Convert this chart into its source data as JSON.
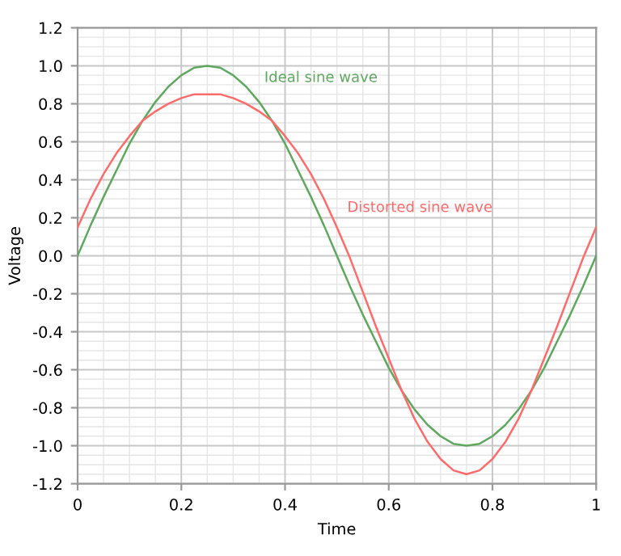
{
  "chart_data": {
    "type": "line",
    "xlabel": "Time",
    "ylabel": "Voltage",
    "x": [
      0,
      0.025,
      0.05,
      0.075,
      0.1,
      0.125,
      0.15,
      0.175,
      0.2,
      0.225,
      0.25,
      0.275,
      0.3,
      0.325,
      0.35,
      0.375,
      0.4,
      0.425,
      0.45,
      0.475,
      0.5,
      0.525,
      0.55,
      0.575,
      0.6,
      0.625,
      0.65,
      0.675,
      0.7,
      0.725,
      0.75,
      0.775,
      0.8,
      0.825,
      0.85,
      0.875,
      0.9,
      0.925,
      0.95,
      0.975,
      1
    ],
    "series": [
      {
        "name": "Ideal sine wave",
        "color": "#5fa85f",
        "values": [
          0,
          0.16,
          0.31,
          0.45,
          0.59,
          0.71,
          0.81,
          0.89,
          0.95,
          0.99,
          1,
          0.99,
          0.95,
          0.89,
          0.81,
          0.71,
          0.59,
          0.45,
          0.31,
          0.16,
          0,
          -0.16,
          -0.31,
          -0.45,
          -0.59,
          -0.71,
          -0.81,
          -0.89,
          -0.95,
          -0.99,
          -1,
          -0.99,
          -0.95,
          -0.89,
          -0.81,
          -0.71,
          -0.59,
          -0.45,
          -0.31,
          -0.16,
          0
        ]
      },
      {
        "name": "Distorted sine wave",
        "color": "#ff6b6b",
        "values": [
          0.15,
          0.3,
          0.43,
          0.54,
          0.63,
          0.71,
          0.76,
          0.8,
          0.83,
          0.85,
          0.85,
          0.85,
          0.83,
          0.8,
          0.76,
          0.71,
          0.63,
          0.54,
          0.43,
          0.3,
          0.15,
          -0.01,
          -0.19,
          -0.37,
          -0.54,
          -0.71,
          -0.86,
          -0.98,
          -1.07,
          -1.13,
          -1.15,
          -1.13,
          -1.07,
          -0.98,
          -0.86,
          -0.71,
          -0.54,
          -0.37,
          -0.19,
          -0.01,
          0.15
        ]
      }
    ],
    "xlim": [
      0,
      1
    ],
    "xticks": [
      0,
      0.2,
      0.4,
      0.6,
      0.8,
      1
    ],
    "ylim": [
      -1.2,
      1.2
    ],
    "yticks": [
      {
        "value": -1.2,
        "label": "-1.2"
      },
      {
        "value": -1.0,
        "label": "-1.0"
      },
      {
        "value": -0.8,
        "label": "-0.8"
      },
      {
        "value": -0.6,
        "label": "-0.6"
      },
      {
        "value": -0.4,
        "label": "-0.4"
      },
      {
        "value": -0.2,
        "label": "-0.2"
      },
      {
        "value": 0,
        "label": "0.0"
      },
      {
        "value": 0.2,
        "label": "0.2"
      },
      {
        "value": 0.4,
        "label": "0.4"
      },
      {
        "value": 0.6,
        "label": "0.6"
      },
      {
        "value": 0.8,
        "label": "0.8"
      },
      {
        "value": 1.0,
        "label": "1.0"
      },
      {
        "value": 1.2,
        "label": "1.2"
      }
    ],
    "grid": true,
    "legend": false,
    "marker": "none",
    "line_style": "solid"
  }
}
